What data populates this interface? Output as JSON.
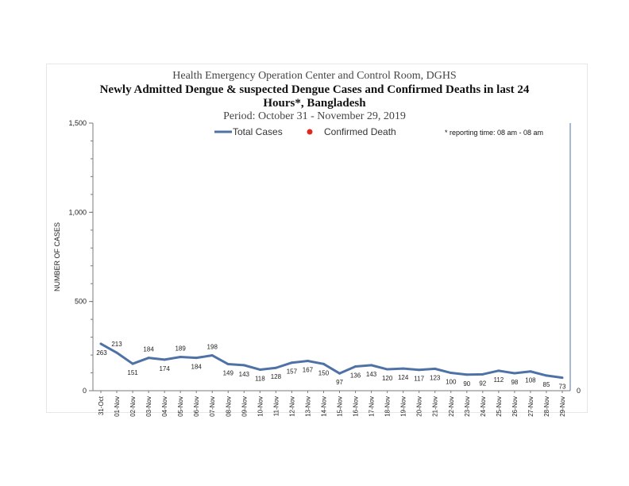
{
  "header": {
    "org": "Health Emergency Operation Center and Control Room, DGHS",
    "title_line1": "Newly Admitted Dengue & suspected Dengue Cases and Confirmed Deaths in last 24",
    "title_line2": "Hours*, Bangladesh",
    "period": "Period: October 31 - November 29, 2019"
  },
  "note": "* reporting time: 08 am - 08 am",
  "colors": {
    "cases": "#4f72a6",
    "deaths": "#e0281e",
    "axis": "#7a7a7a"
  },
  "chart_data": {
    "type": "line",
    "title": "Newly Admitted Dengue & suspected Dengue Cases and Confirmed Deaths in last 24 Hours*, Bangladesh",
    "subtitle": "Period: October 31 - November 29, 2019",
    "xlabel": "",
    "ylabel": "NUMBER OF CASES",
    "ylim": [
      0,
      1500
    ],
    "yticks": [
      0,
      500,
      1000,
      1500
    ],
    "ytick_labels": [
      "0",
      "500",
      "1,000",
      "1,500"
    ],
    "secondary_axis_value": "0",
    "legend_position": "top",
    "categories": [
      "31-Oct",
      "01-Nov",
      "02-Nov",
      "03-Nov",
      "04-Nov",
      "05-Nov",
      "06-Nov",
      "07-Nov",
      "08-Nov",
      "09-Nov",
      "10-Nov",
      "11-Nov",
      "12-Nov",
      "13-Nov",
      "14-Nov",
      "15-Nov",
      "16-Nov",
      "17-Nov",
      "18-Nov",
      "19-Nov",
      "20-Nov",
      "21-Nov",
      "22-Nov",
      "23-Nov",
      "24-Nov",
      "25-Nov",
      "26-Nov",
      "27-Nov",
      "28-Nov",
      "29-Nov"
    ],
    "series": [
      {
        "name": "Total Cases",
        "values": [
          263,
          213,
          151,
          184,
          174,
          189,
          184,
          198,
          149,
          143,
          118,
          128,
          157,
          167,
          150,
          97,
          136,
          143,
          120,
          124,
          117,
          123,
          100,
          90,
          92,
          112,
          98,
          108,
          85,
          73
        ]
      },
      {
        "name": "Confirmed Death",
        "values": [
          0,
          0,
          0,
          0,
          0,
          0,
          0,
          0,
          0,
          0,
          0,
          0,
          0,
          0,
          0,
          0,
          0,
          0,
          0,
          0,
          0,
          0,
          0,
          0,
          0,
          0,
          0,
          0,
          0,
          0
        ]
      }
    ]
  }
}
